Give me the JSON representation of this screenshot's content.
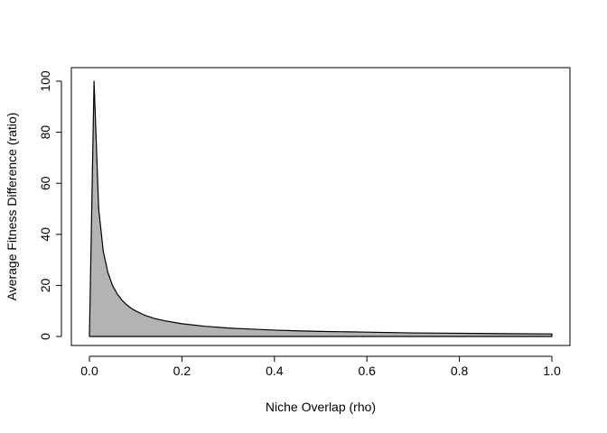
{
  "chart_data": {
    "type": "area",
    "title": "",
    "xlabel": "Niche Overlap (rho)",
    "ylabel": "Average Fitness Difference (ratio)",
    "xlim": [
      0.0,
      1.0
    ],
    "ylim": [
      0,
      100
    ],
    "x_ticks": [
      0.0,
      0.2,
      0.4,
      0.6,
      0.8,
      1.0
    ],
    "x_tick_labels": [
      "0.0",
      "0.2",
      "0.4",
      "0.6",
      "0.8",
      "1.0"
    ],
    "y_ticks": [
      0,
      20,
      40,
      60,
      80,
      100
    ],
    "y_tick_labels": [
      "0",
      "20",
      "40",
      "60",
      "80",
      "100"
    ],
    "grid": false,
    "legend": "none",
    "fill_color": "#b3b3b3",
    "line_color": "#000000",
    "series": [
      {
        "x": [
          0.01,
          0.02,
          0.03,
          0.04,
          0.05,
          0.06,
          0.07,
          0.08,
          0.09,
          0.1,
          0.12,
          0.14,
          0.16,
          0.18,
          0.2,
          0.25,
          0.3,
          0.35,
          0.4,
          0.45,
          0.5,
          0.6,
          0.7,
          0.8,
          0.9,
          1.0
        ],
        "y": [
          100,
          50,
          33.3,
          25,
          20,
          16.7,
          14.3,
          12.5,
          11.1,
          10,
          8.3,
          7.1,
          6.25,
          5.6,
          5,
          4,
          3.3,
          2.9,
          2.5,
          2.2,
          2,
          1.7,
          1.4,
          1.25,
          1.1,
          1
        ]
      }
    ]
  }
}
